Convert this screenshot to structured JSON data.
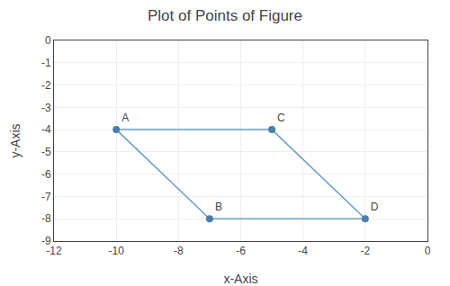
{
  "chart_data": {
    "type": "scatter",
    "title": "Plot of Points of Figure",
    "xlabel": "x-Axis",
    "ylabel": "y-Axis",
    "labels": [
      "A",
      "B",
      "C",
      "D"
    ],
    "x": [
      -10,
      -7,
      -5,
      -2
    ],
    "values": [
      -4,
      -8,
      -4,
      -8
    ],
    "color": "#4a7eab",
    "connections": {
      "pairs": [
        [
          "A",
          "B"
        ],
        [
          "A",
          "C"
        ],
        [
          "C",
          "D"
        ],
        [
          "B",
          "D"
        ]
      ],
      "color": "#6a9ec2"
    },
    "xlim": [
      -12,
      0
    ],
    "ylim": [
      -9,
      0
    ],
    "xticks": [
      -12,
      -10,
      -8,
      -6,
      -4,
      -2,
      0
    ],
    "yticks": [
      0,
      -1,
      -2,
      -3,
      -4,
      -5,
      -6,
      -7,
      -8,
      -9
    ],
    "grid": true
  }
}
